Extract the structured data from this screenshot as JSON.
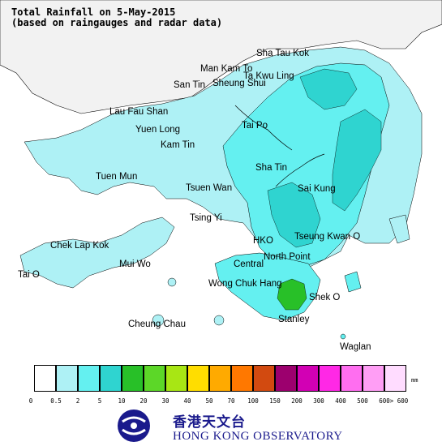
{
  "title": {
    "line1": "Total Rainfall on 5-May-2015",
    "line2": "(based on raingauges and radar data)"
  },
  "places": [
    {
      "id": "sha-tau-kok",
      "label": "Sha Tau Kok"
    },
    {
      "id": "man-kam-to",
      "label": "Man Kam To"
    },
    {
      "id": "ta-kwu-ling",
      "label": "Ta Kwu Ling"
    },
    {
      "id": "san-tin",
      "label": "San Tin"
    },
    {
      "id": "sheung-shui",
      "label": "Sheung Shui"
    },
    {
      "id": "lau-fau-shan",
      "label": "Lau Fau Shan"
    },
    {
      "id": "yuen-long",
      "label": "Yuen Long"
    },
    {
      "id": "tai-po",
      "label": "Tai Po"
    },
    {
      "id": "kam-tin",
      "label": "Kam Tin"
    },
    {
      "id": "sha-tin",
      "label": "Sha Tin"
    },
    {
      "id": "tuen-mun",
      "label": "Tuen Mun"
    },
    {
      "id": "tsuen-wan",
      "label": "Tsuen Wan"
    },
    {
      "id": "sai-kung",
      "label": "Sai Kung"
    },
    {
      "id": "tsing-yi",
      "label": "Tsing Yi"
    },
    {
      "id": "hko",
      "label": "HKO"
    },
    {
      "id": "tseung-kwan-o",
      "label": "Tseung Kwan O"
    },
    {
      "id": "chek-lap-kok",
      "label": "Chek Lap Kok"
    },
    {
      "id": "central",
      "label": "Central"
    },
    {
      "id": "north-point",
      "label": "North Point"
    },
    {
      "id": "mui-wo",
      "label": "Mui Wo"
    },
    {
      "id": "tai-o",
      "label": "Tai O"
    },
    {
      "id": "wong-chuk-hang",
      "label": "Wong Chuk Hang"
    },
    {
      "id": "shek-o",
      "label": "Shek O"
    },
    {
      "id": "stanley",
      "label": "Stanley"
    },
    {
      "id": "cheung-chau",
      "label": "Cheung Chau"
    },
    {
      "id": "waglan",
      "label": "Waglan"
    }
  ],
  "legend": {
    "unit": "mm",
    "colors": [
      "#ffffff",
      "#aef1f5",
      "#64f0f0",
      "#2fd4d0",
      "#28c028",
      "#5cd728",
      "#a8e614",
      "#ffdd00",
      "#ffaa00",
      "#ff7800",
      "#d24a10",
      "#9c006e",
      "#d200b4",
      "#ff28e6",
      "#ff6ef0",
      "#ff9ef5",
      "#ffdcff"
    ],
    "ticks": [
      "0",
      "0.5",
      "2",
      "5",
      "10",
      "20",
      "30",
      "40",
      "50",
      "70",
      "100",
      "150",
      "200",
      "300",
      "400",
      "500",
      "600",
      "> 600"
    ]
  },
  "logo": {
    "chinese": "香港天文台",
    "english": "HONG KONG OBSERVATORY"
  }
}
